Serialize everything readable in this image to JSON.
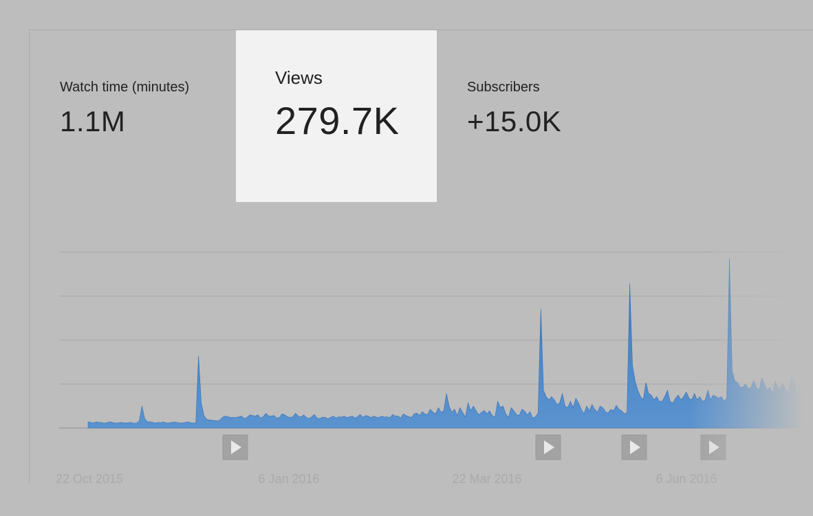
{
  "metrics": {
    "watch_time": {
      "label": "Watch time (minutes)",
      "value": "1.1M"
    },
    "views": {
      "label": "Views",
      "value": "279.7K"
    },
    "subscribers": {
      "label": "Subscribers",
      "value": "+15.0K"
    }
  },
  "colors": {
    "background": "#bdbdbd",
    "selected_card": "#f2f2f2",
    "series_fill": "#3d7fc4",
    "gridline": "#a5a5a5",
    "marker": "#a3a3a3"
  },
  "icons": {
    "video_marker": "play-icon"
  },
  "chart_data": {
    "type": "area",
    "x_tick_labels": [
      "22 Oct 2015",
      "6 Jan 2016",
      "22 Mar 2016",
      "6 Jun 2016"
    ],
    "gridlines": 5,
    "video_markers": [
      "2016-01-06",
      "2016-04-01",
      "2016-05-16",
      "2016-06-06"
    ],
    "series": [
      {
        "values": [
          2,
          1.8,
          1.6,
          2,
          1.8,
          1.8,
          1.5,
          1.7,
          2,
          1.8,
          1.6,
          1.6,
          1.8,
          1.7,
          1.6,
          1.7,
          1.8,
          1.5,
          1.6,
          2.2,
          7,
          3,
          2,
          2,
          1.8,
          1.6,
          1.8,
          1.7,
          2,
          1.6,
          1.6,
          1.8,
          1.9,
          1.8,
          1.6,
          1.6,
          1.8,
          2,
          1.7,
          1.6,
          1.6,
          23,
          8,
          4,
          2.8,
          2.6,
          2.5,
          2.4,
          2.3,
          2.6,
          3.5,
          3.8,
          3.6,
          3.4,
          3.4,
          3.4,
          3.6,
          3.8,
          3,
          3.4,
          4.2,
          4,
          3.8,
          4.2,
          3.2,
          3.6,
          4.7,
          3.8,
          3.8,
          4,
          3.2,
          3.4,
          4.5,
          4.2,
          3.6,
          3.4,
          3.6,
          4.7,
          3.8,
          3.5,
          4.2,
          3.4,
          3,
          3.6,
          4.3,
          3.2,
          3,
          3.5,
          3.4,
          3,
          3.4,
          3.8,
          3.2,
          3.6,
          3.5,
          3.8,
          3.3,
          3.6,
          3.8,
          3.2,
          3.6,
          4.3,
          3.4,
          4,
          3.8,
          3.3,
          3.8,
          3.5,
          3.4,
          3.8,
          3.5,
          3.6,
          3.3,
          4.3,
          3.8,
          3.8,
          3.2,
          4.5,
          4,
          3.6,
          3.4,
          4.5,
          4.8,
          4,
          5.2,
          4.5,
          4.3,
          6,
          5,
          4.6,
          6.5,
          5,
          5.5,
          11,
          7,
          5,
          6,
          4,
          6.5,
          5,
          3.5,
          8,
          5.5,
          7,
          5.5,
          4.2,
          5,
          5.6,
          4.5,
          5.5,
          4,
          3.5,
          8.5,
          6.5,
          7,
          4.5,
          3.4,
          6.5,
          5.5,
          4.3,
          4,
          6,
          5.4,
          4.2,
          5.2,
          3.2,
          3.6,
          4.8,
          38,
          12,
          10,
          9,
          10,
          9,
          7.5,
          8,
          11,
          7,
          6.5,
          8.5,
          6.5,
          9.5,
          8,
          6,
          4.5,
          7,
          5.5,
          7.5,
          6,
          5,
          7,
          6.5,
          5.2,
          4.8,
          6,
          5.5,
          7.2,
          6,
          5.5,
          4.5,
          5,
          46,
          20,
          15,
          12,
          10,
          9,
          14.5,
          11,
          10.5,
          9,
          10,
          8.5,
          8.5,
          10,
          12,
          8.5,
          8,
          9.5,
          10.5,
          9,
          10,
          11.5,
          9.5,
          9,
          11,
          9,
          10,
          8.5,
          9,
          12,
          9,
          10.5,
          10,
          9.5,
          10,
          8.5,
          9.5,
          54,
          18,
          15,
          14.5,
          13,
          13,
          14,
          12.5,
          13,
          15,
          13,
          12,
          16,
          14,
          12,
          13,
          11,
          15,
          12.5,
          13,
          14,
          12,
          11.5,
          16,
          15,
          11,
          14,
          13,
          12,
          10,
          14,
          12
        ]
      }
    ]
  }
}
